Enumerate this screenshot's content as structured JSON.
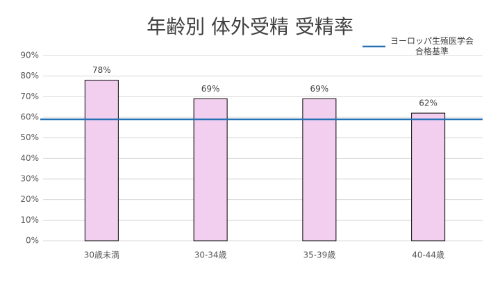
{
  "chart_data": {
    "type": "bar",
    "title": "年齢別 体外受精 受精率",
    "categories": [
      "30歳未満",
      "30-34歳",
      "35-39歳",
      "40-44歳"
    ],
    "values": [
      78,
      69,
      69,
      62
    ],
    "value_labels": [
      "78%",
      "69%",
      "69%",
      "62%"
    ],
    "color": "#f2cfee",
    "edge_color": "#000000",
    "reference_line": {
      "name": "ヨーロッパ生殖医学会合格基準",
      "value": 59,
      "color": "#2672b4"
    },
    "ylim": [
      0,
      90
    ],
    "yticks": [
      {
        "value": 0,
        "label": "0%"
      },
      {
        "value": 10,
        "label": "10%"
      },
      {
        "value": 20,
        "label": "20%"
      },
      {
        "value": 30,
        "label": "30%"
      },
      {
        "value": 40,
        "label": "40%"
      },
      {
        "value": 50,
        "label": "50%"
      },
      {
        "value": 60,
        "label": "60%"
      },
      {
        "value": 70,
        "label": "70%"
      },
      {
        "value": 80,
        "label": "80%"
      },
      {
        "value": 90,
        "label": "90%"
      }
    ],
    "grid": true,
    "legend": "top-right"
  }
}
